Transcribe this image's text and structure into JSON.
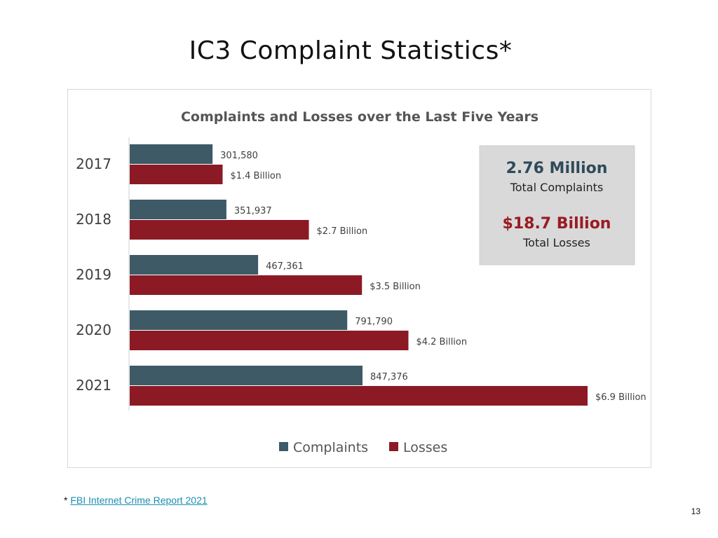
{
  "slide": {
    "title": "IC3 Complaint Statistics*",
    "footnote_marker": "*",
    "footnote_link": "FBI Internet Crime Report 2021",
    "page_number": "13"
  },
  "chart_data": {
    "type": "bar",
    "orientation": "horizontal",
    "title": "Complaints and Losses over the Last Five Years",
    "categories": [
      "2017",
      "2018",
      "2019",
      "2020",
      "2021"
    ],
    "series": [
      {
        "name": "Complaints",
        "color": "#3d5a66",
        "values": [
          301580,
          351937,
          467361,
          791790,
          847376
        ],
        "labels": [
          "301,580",
          "351,937",
          "467,361",
          "791,790",
          "847,376"
        ]
      },
      {
        "name": "Losses",
        "color": "#8b1a25",
        "values": [
          1.4,
          2.7,
          3.5,
          4.2,
          6.9
        ],
        "labels": [
          "$1.4 Billion",
          "$2.7 Billion",
          "$3.5 Billion",
          "$4.2 Billion",
          "$6.9 Billion"
        ]
      }
    ],
    "legend": {
      "position": "bottom",
      "items": [
        "Complaints",
        "Losses"
      ]
    },
    "grid": false,
    "summary": {
      "complaints_value": "2.76 Million",
      "complaints_label": "Total Complaints",
      "losses_value": "$18.7 Billion",
      "losses_label": "Total Losses",
      "complaints_color": "#2f4a5a",
      "losses_color": "#9a1b24",
      "background": "#d9d9d9"
    }
  }
}
